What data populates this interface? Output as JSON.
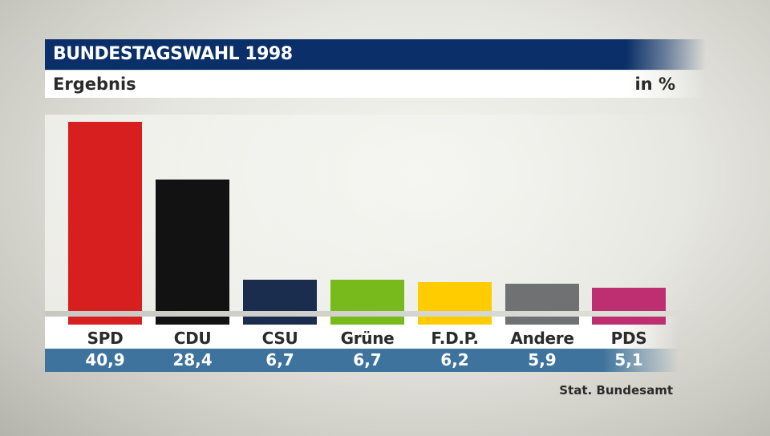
{
  "header": {
    "title": "BUNDESTAGSWAHL 1998",
    "subtitle": "Ergebnis",
    "unit": "in %"
  },
  "source": "Stat. Bundesamt",
  "colors": {
    "title_bg": "#0b3069",
    "value_band": "#3e739d",
    "SPD": "#d81f1f",
    "CDU": "#121212",
    "CSU": "#1a2d4e",
    "Grüne": "#78b91c",
    "F.D.P.": "#ffcc00",
    "Andere": "#707173",
    "PDS": "#be2f72"
  },
  "bars": [
    {
      "label": "SPD",
      "value": "40,9",
      "color": "#d81f1f"
    },
    {
      "label": "CDU",
      "value": "28,4",
      "color": "#121212"
    },
    {
      "label": "CSU",
      "value": "6,7",
      "color": "#1a2d4e"
    },
    {
      "label": "Grüne",
      "value": "6,7",
      "color": "#78b91c"
    },
    {
      "label": "F.D.P.",
      "value": "6,2",
      "color": "#ffcc00"
    },
    {
      "label": "Andere",
      "value": "5,9",
      "color": "#707173"
    },
    {
      "label": "PDS",
      "value": "5,1",
      "color": "#be2f72"
    }
  ],
  "chart_data": {
    "type": "bar",
    "title": "BUNDESTAGSWAHL 1998",
    "subtitle": "Ergebnis",
    "unit": "in %",
    "categories": [
      "SPD",
      "CDU",
      "CSU",
      "Grüne",
      "F.D.P.",
      "Andere",
      "PDS"
    ],
    "values": [
      40.9,
      28.4,
      6.7,
      6.7,
      6.2,
      5.9,
      5.1
    ],
    "value_labels": [
      "40,9",
      "28,4",
      "6,7",
      "6,7",
      "6,2",
      "5,9",
      "5,1"
    ],
    "colors": [
      "#d81f1f",
      "#121212",
      "#1a2d4e",
      "#78b91c",
      "#ffcc00",
      "#707173",
      "#be2f72"
    ],
    "xlabel": "",
    "ylabel": "",
    "grid": false,
    "legend": "none",
    "source": "Stat. Bundesamt"
  }
}
